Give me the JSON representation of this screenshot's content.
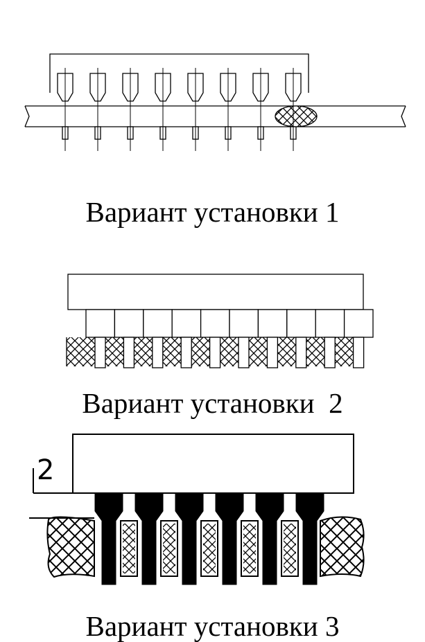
{
  "figures": [
    {
      "caption": "Вариант установки 1",
      "pins": 8
    },
    {
      "caption": "Вариант установки  2",
      "pins": 10
    },
    {
      "caption": "Вариант установки 3",
      "pins": 6,
      "dimension_label": "2"
    }
  ],
  "colors": {
    "line": "#000000",
    "background": "#ffffff",
    "hatch": "#000000"
  }
}
